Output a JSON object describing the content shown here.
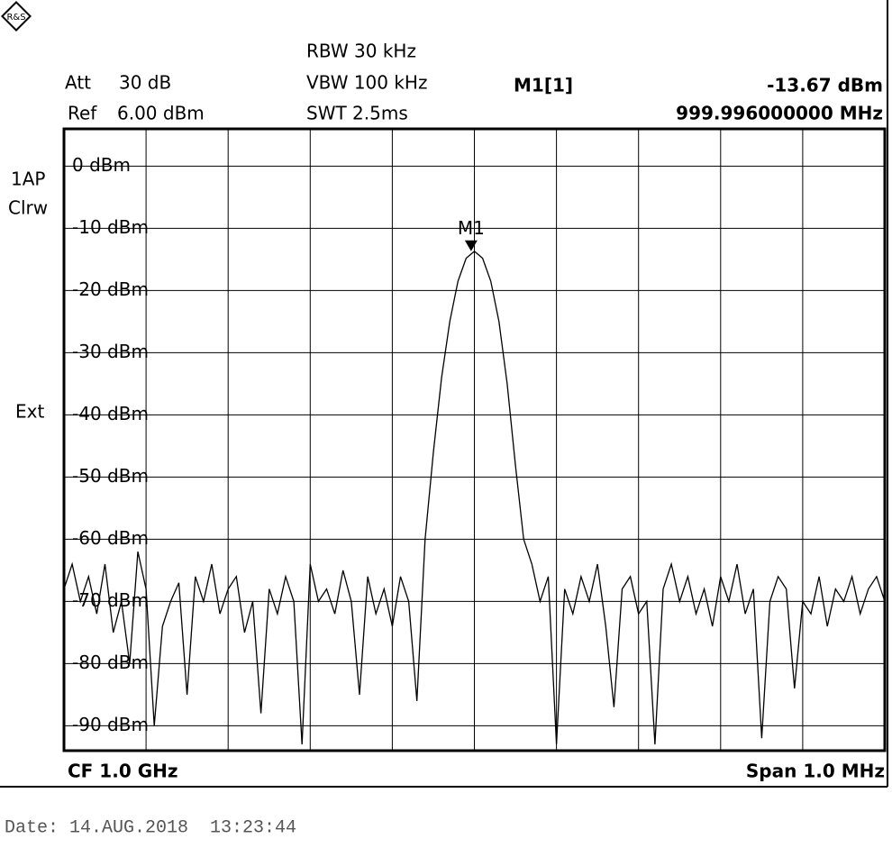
{
  "header": {
    "att_label": "Att",
    "att": "30 dB",
    "ref_label": "Ref",
    "ref": "6.00 dBm",
    "rbw": "RBW 30 kHz",
    "vbw": "VBW 100 kHz",
    "swt": "SWT 2.5ms",
    "marker_name": "M1[1]",
    "marker_level": "-13.67 dBm",
    "marker_freq": "999.996000000 MHz"
  },
  "side": {
    "trace_mode": "1AP",
    "detector": "Clrw",
    "trigger": "Ext"
  },
  "footer": {
    "center": "CF 1.0 GHz",
    "span": "Span 1.0 MHz"
  },
  "date": "Date: 14.AUG.2018  13:23:44",
  "chart_data": {
    "type": "line",
    "xlim": [
      999.5,
      1000.5
    ],
    "ylim": [
      -94,
      6
    ],
    "yticks": [
      {
        "value": 0,
        "label": "0 dBm"
      },
      {
        "value": -10,
        "label": "-10 dBm"
      },
      {
        "value": -20,
        "label": "-20 dBm"
      },
      {
        "value": -30,
        "label": "-30 dBm"
      },
      {
        "value": -40,
        "label": "-40 dBm"
      },
      {
        "value": -50,
        "label": "-50 dBm"
      },
      {
        "value": -60,
        "label": "-60 dBm"
      },
      {
        "value": -70,
        "label": "-70 dBm"
      },
      {
        "value": -80,
        "label": "-80 dBm"
      },
      {
        "value": -90,
        "label": "-90 dBm"
      }
    ],
    "grid": true,
    "x": [
      999.5,
      999.51,
      999.52,
      999.53,
      999.54,
      999.55,
      999.56,
      999.57,
      999.58,
      999.59,
      999.6,
      999.61,
      999.62,
      999.63,
      999.64,
      999.65,
      999.66,
      999.67,
      999.68,
      999.69,
      999.7,
      999.71,
      999.72,
      999.73,
      999.74,
      999.75,
      999.76,
      999.77,
      999.78,
      999.79,
      999.8,
      999.81,
      999.82,
      999.83,
      999.84,
      999.85,
      999.86,
      999.87,
      999.88,
      999.89,
      999.9,
      999.91,
      999.92,
      999.93,
      999.94,
      999.95,
      999.96,
      999.97,
      999.98,
      999.99,
      1000.0,
      1000.01,
      1000.02,
      1000.03,
      1000.04,
      1000.05,
      1000.06,
      1000.07,
      1000.08,
      1000.09,
      1000.1,
      1000.11,
      1000.12,
      1000.13,
      1000.14,
      1000.15,
      1000.16,
      1000.17,
      1000.18,
      1000.19,
      1000.2,
      1000.21,
      1000.22,
      1000.23,
      1000.24,
      1000.25,
      1000.26,
      1000.27,
      1000.28,
      1000.29,
      1000.3,
      1000.31,
      1000.32,
      1000.33,
      1000.34,
      1000.35,
      1000.36,
      1000.37,
      1000.38,
      1000.39,
      1000.4,
      1000.41,
      1000.42,
      1000.43,
      1000.44,
      1000.45,
      1000.46,
      1000.47,
      1000.48,
      1000.49,
      1000.5
    ],
    "series": [
      {
        "color": "#000000",
        "values": [
          -68,
          -64,
          -70,
          -66,
          -72,
          -64,
          -75,
          -70,
          -80,
          -62,
          -68,
          -90,
          -74,
          -70,
          -67,
          -85,
          -66,
          -70,
          -64,
          -72,
          -68,
          -66,
          -75,
          -70,
          -88,
          -68,
          -72,
          -66,
          -70,
          -93,
          -64,
          -70,
          -68,
          -72,
          -65,
          -70,
          -85,
          -66,
          -72,
          -68,
          -74,
          -66,
          -70,
          -86,
          -60,
          -46,
          -34,
          -25,
          -18.5,
          -14.8,
          -13.7,
          -14.8,
          -18.5,
          -25,
          -35,
          -48,
          -60,
          -64,
          -70,
          -66,
          -93,
          -68,
          -72,
          -66,
          -70,
          -64,
          -74,
          -87,
          -68,
          -66,
          -72,
          -70,
          -93,
          -68,
          -64,
          -70,
          -66,
          -72,
          -68,
          -74,
          -66,
          -70,
          -64,
          -72,
          -68,
          -92,
          -70,
          -66,
          -68,
          -84,
          -70,
          -72,
          -66,
          -74,
          -68,
          -70,
          -66,
          -72,
          -68,
          -66,
          -70
        ]
      }
    ],
    "marker": {
      "label": "M1",
      "x": 999.996,
      "y": -13.67
    }
  }
}
